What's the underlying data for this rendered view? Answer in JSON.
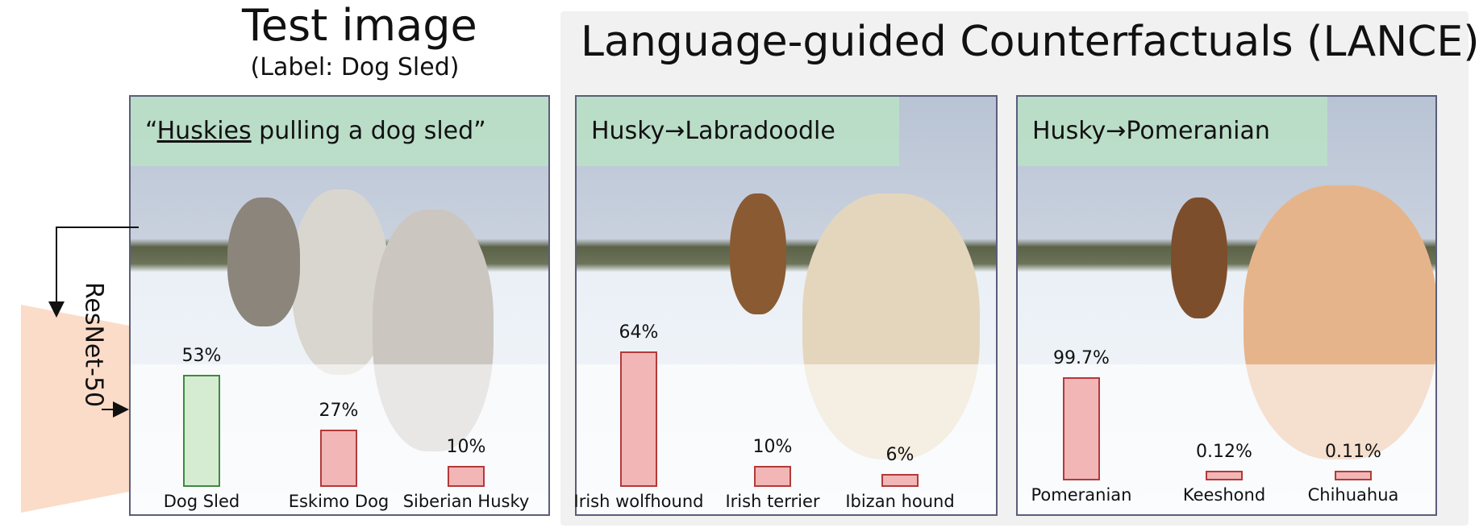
{
  "test_section": {
    "title": "Test image",
    "subtitle": "(Label: Dog Sled)",
    "caption_prefix": "“",
    "caption_underlined": "Huskies",
    "caption_suffix": " pulling a dog sled”"
  },
  "model": {
    "name": "ResNet-50"
  },
  "lance_section": {
    "title": "Language-guided Counterfactuals (LANCE)"
  },
  "panels": [
    {
      "caption": "",
      "bars": [
        {
          "pct": "53%",
          "value": 53,
          "label": "Dog Sled",
          "color": "#d6ecd2"
        },
        {
          "pct": "27%",
          "value": 27,
          "label": "Eskimo Dog",
          "color": "#f2b6b6"
        },
        {
          "pct": "10%",
          "value": 10,
          "label": "Siberian Husky",
          "color": "#f2b6b6"
        }
      ]
    },
    {
      "caption": "Husky→Labradoodle",
      "bars": [
        {
          "pct": "64%",
          "value": 64,
          "label": "Irish wolfhound",
          "color": "#f2b6b6"
        },
        {
          "pct": "10%",
          "value": 10,
          "label": "Irish terrier",
          "color": "#f2b6b6"
        },
        {
          "pct": "6%",
          "value": 6,
          "label": "Ibizan hound",
          "color": "#f2b6b6"
        }
      ]
    },
    {
      "caption": "Husky→Pomeranian",
      "bars": [
        {
          "pct": "99.7%",
          "value": 99.7,
          "label": "Pomeranian",
          "color": "#f2b6b6"
        },
        {
          "pct": "0.12%",
          "value": 0.12,
          "label": "Keeshond",
          "color": "#f2b6b6"
        },
        {
          "pct": "0.11%",
          "value": 0.11,
          "label": "Chihuahua",
          "color": "#f2b6b6"
        }
      ]
    }
  ]
}
